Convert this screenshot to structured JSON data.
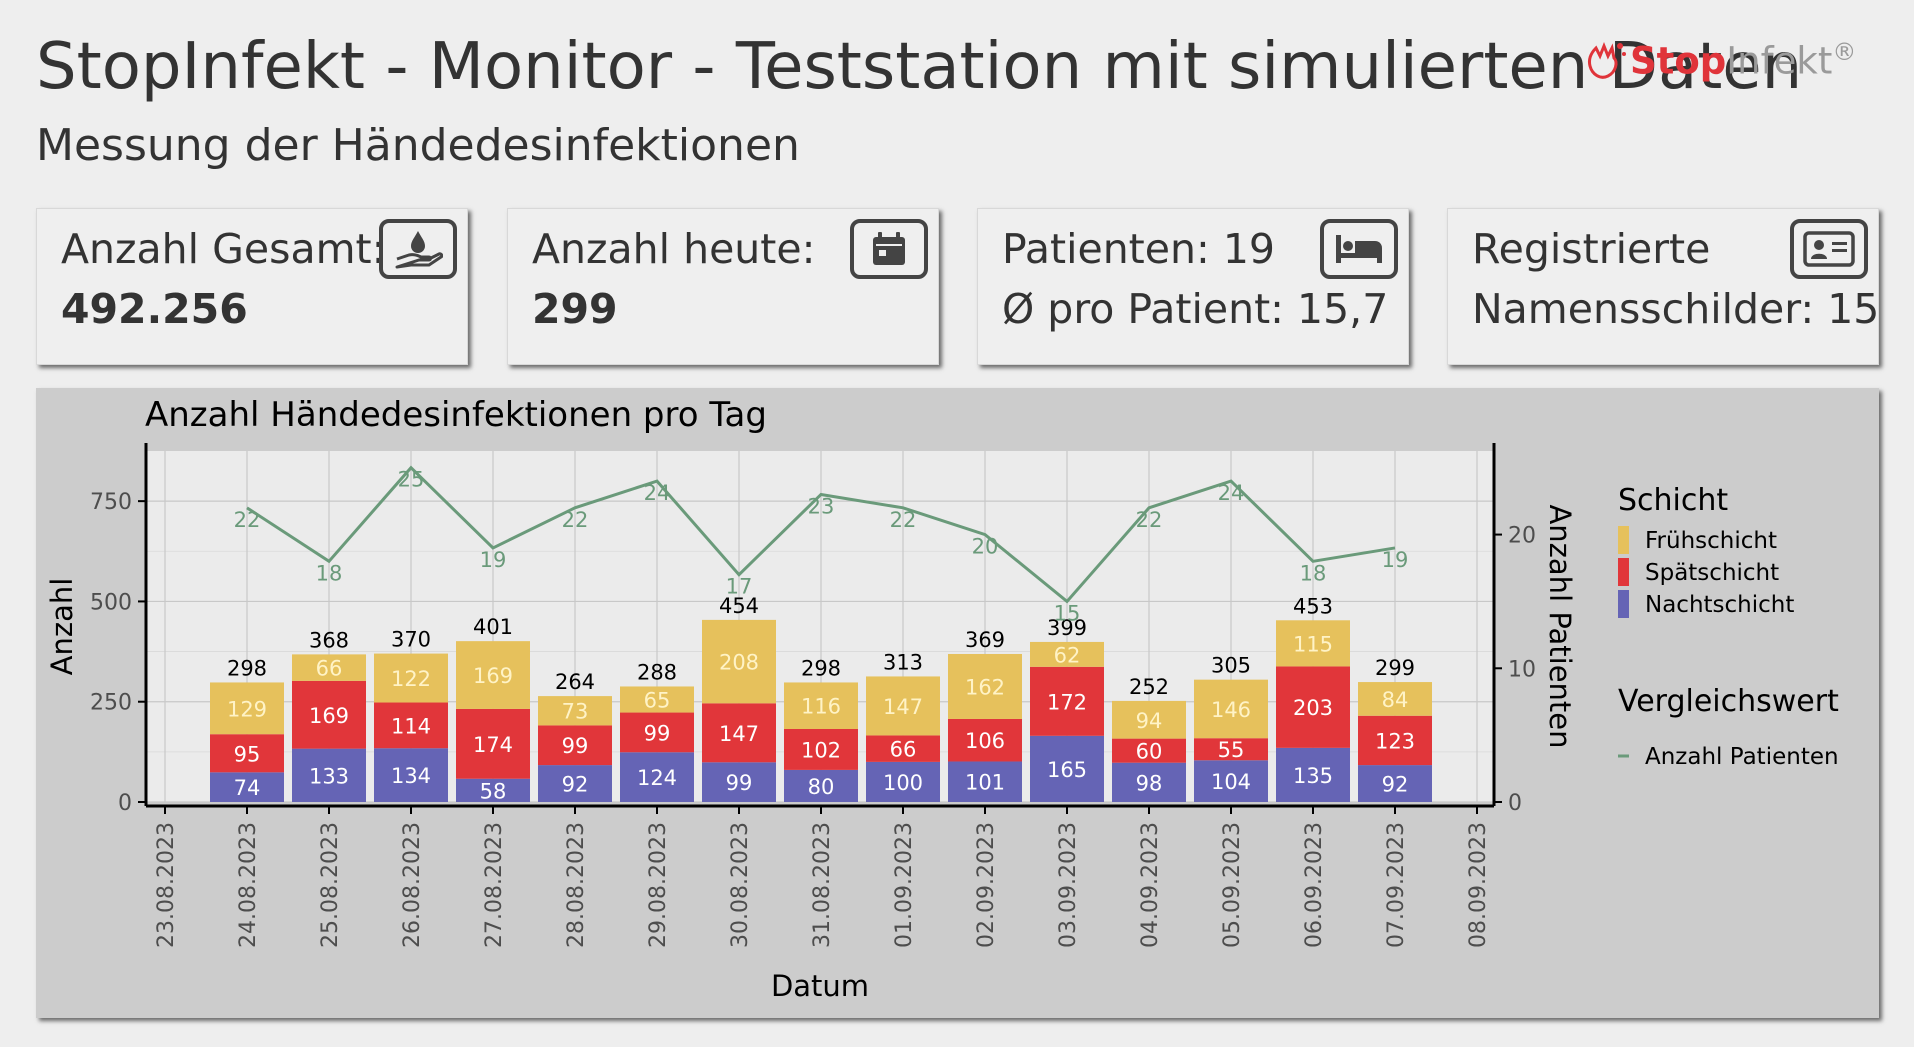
{
  "header": {
    "title": "StopInfekt - Monitor - Teststation mit simulierten Daten",
    "subtitle": "Messung der Händedesinfektionen",
    "logo_stop": "Stop",
    "logo_infekt": "Infekt",
    "logo_reg": "®"
  },
  "cards": [
    {
      "line1": "Anzahl Gesamt:",
      "line2": "492.256",
      "icon": "hand-droplet-icon"
    },
    {
      "line1": "Anzahl heute:",
      "line2": "299",
      "icon": "calendar-icon"
    },
    {
      "line1": "Patienten: 19",
      "line2": "Ø pro Patient: 15,7",
      "icon": "bed-icon"
    },
    {
      "line1": "Registrierte",
      "line2": "Namensschilder: 15",
      "icon": "id-card-icon"
    }
  ],
  "colors": {
    "frueh": "#e6c15c",
    "spaet": "#e1363a",
    "nacht": "#6564b5",
    "line": "#6a9a7a",
    "frueh_label": "#fff3c6",
    "bar_label": "#ffffff",
    "total_label": "#000000"
  },
  "chart_data": {
    "type": "bar",
    "title": "Anzahl Händedesinfektionen pro Tag",
    "xlabel": "Datum",
    "ylabel": "Anzahl",
    "y2label": "Anzahl Patienten",
    "ylim": [
      0,
      875
    ],
    "y2lim": [
      0,
      26.25
    ],
    "yticks": [
      0,
      250,
      500,
      750
    ],
    "y2ticks": [
      0,
      10,
      20
    ],
    "xticks": [
      "23.08.2023",
      "24.08.2023",
      "25.08.2023",
      "26.08.2023",
      "27.08.2023",
      "28.08.2023",
      "29.08.2023",
      "30.08.2023",
      "31.08.2023",
      "01.09.2023",
      "02.09.2023",
      "03.09.2023",
      "04.09.2023",
      "05.09.2023",
      "06.09.2023",
      "07.09.2023",
      "08.09.2023"
    ],
    "categories": [
      "24.08.2023",
      "25.08.2023",
      "26.08.2023",
      "27.08.2023",
      "28.08.2023",
      "29.08.2023",
      "30.08.2023",
      "31.08.2023",
      "01.09.2023",
      "02.09.2023",
      "03.09.2023",
      "04.09.2023",
      "05.09.2023",
      "06.09.2023",
      "07.09.2023"
    ],
    "series": [
      {
        "name": "Nachtschicht",
        "values": [
          74,
          133,
          134,
          58,
          92,
          124,
          99,
          80,
          100,
          101,
          165,
          98,
          104,
          135,
          92
        ]
      },
      {
        "name": "Spätschicht",
        "values": [
          95,
          169,
          114,
          174,
          99,
          99,
          147,
          102,
          66,
          106,
          172,
          60,
          55,
          203,
          123
        ]
      },
      {
        "name": "Frühschicht",
        "values": [
          129,
          66,
          122,
          169,
          73,
          65,
          208,
          116,
          147,
          162,
          62,
          94,
          146,
          115,
          84
        ]
      }
    ],
    "totals": [
      298,
      368,
      370,
      401,
      264,
      288,
      454,
      298,
      313,
      369,
      399,
      252,
      305,
      453,
      299
    ],
    "line_series": {
      "name": "Anzahl Patienten",
      "values": [
        22,
        18,
        25,
        19,
        22,
        24,
        17,
        23,
        22,
        20,
        15,
        22,
        24,
        18,
        19
      ]
    },
    "legend": {
      "title": "Schicht",
      "items": [
        "Frühschicht",
        "Spätschicht",
        "Nachtschicht"
      ],
      "title2": "Vergleichswert",
      "items2": [
        "Anzahl Patienten"
      ],
      "position": "right"
    },
    "grid": true
  }
}
